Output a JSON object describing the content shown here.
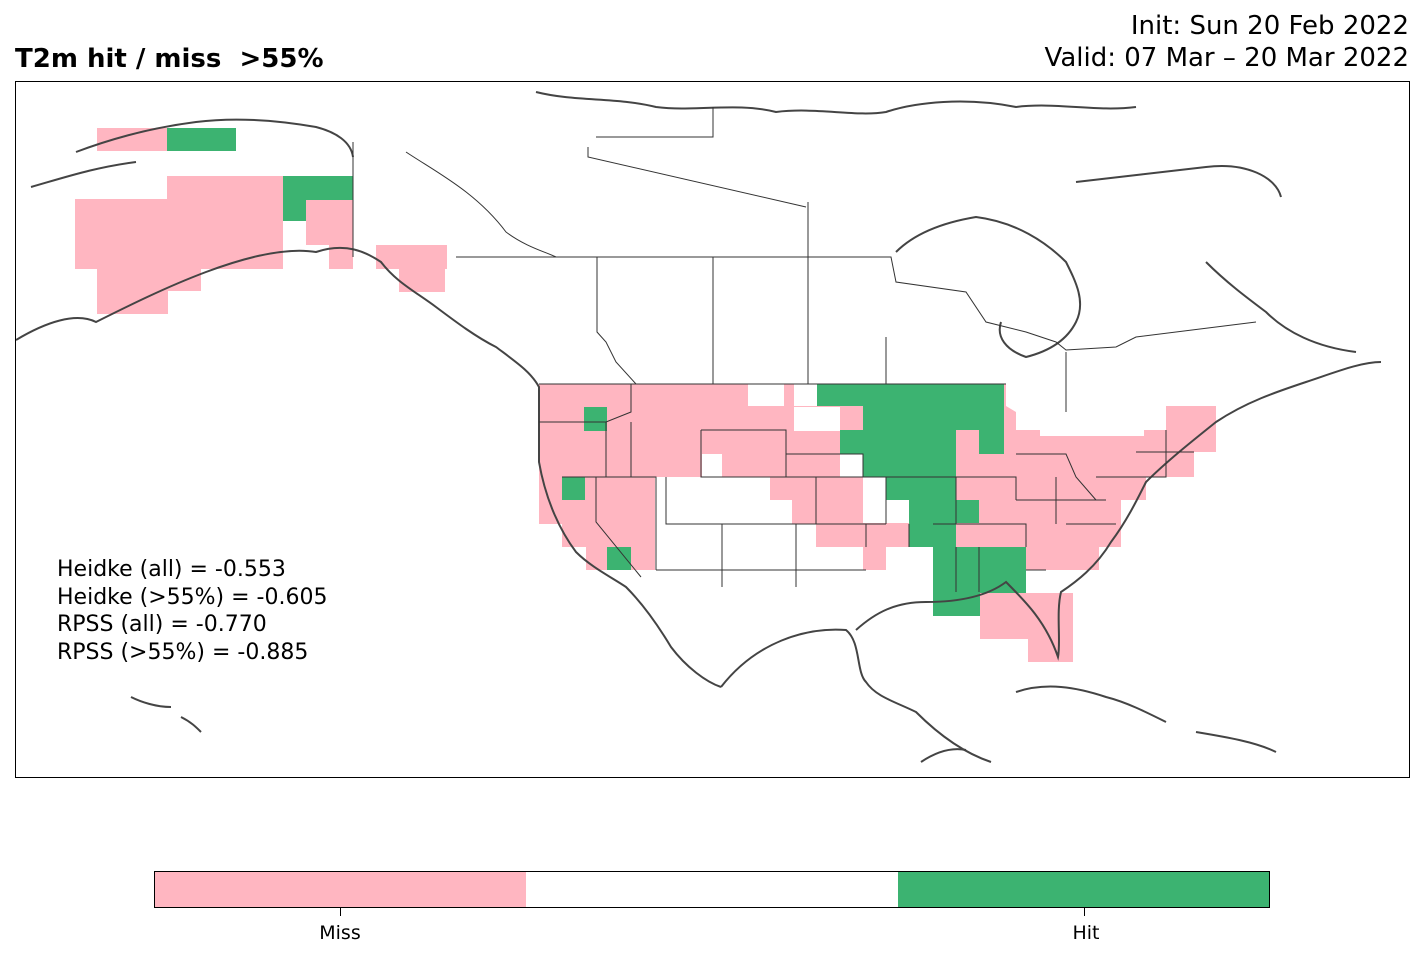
{
  "title": "T2m hit / miss  >55%",
  "init_text": "Init: Sun 20 Feb 2022",
  "valid_text": "Valid: 07 Mar – 20 Mar 2022",
  "scores": [
    "Heidke (all) = -0.553",
    "Heidke (>55%) = -0.605",
    "RPSS (all) = -0.770",
    "RPSS (>55%) = -0.885"
  ],
  "colorbar": {
    "colors": [
      "#ffb6c1",
      "#ffffff",
      "#3cb371"
    ],
    "labels": [
      "Miss",
      "Hit"
    ]
  },
  "map": {
    "region": "North America",
    "miss_color": "#ffb6c1",
    "hit_color": "#3cb371",
    "coastline_color": "#444444"
  }
}
